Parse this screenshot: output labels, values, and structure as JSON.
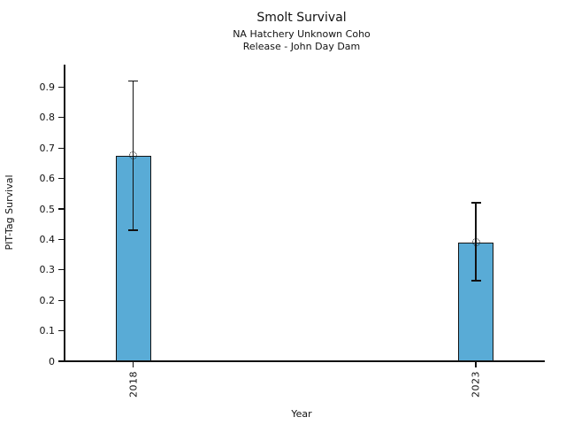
{
  "chart_data": {
    "type": "bar",
    "title": "Smolt Survival",
    "subtitle_line1": "NA Hatchery Unknown Coho",
    "subtitle_line2": "Release - John Day Dam",
    "xlabel": "Year",
    "ylabel": "PIT-Tag Survival",
    "categories": [
      "2018",
      "2023"
    ],
    "values": [
      0.675,
      0.39
    ],
    "error_low": [
      0.43,
      0.265
    ],
    "error_high": [
      0.92,
      0.52
    ],
    "ylim": [
      0,
      0.975
    ],
    "yticks": [
      0,
      0.1,
      0.2,
      0.3,
      0.4,
      0.5,
      0.6,
      0.7,
      0.8,
      0.9
    ],
    "ytick_labels": [
      "0",
      "0.1",
      "0.2",
      "0.3",
      "0.4",
      "0.5",
      "0.6",
      "0.7",
      "0.8",
      "0.9"
    ],
    "grid": false,
    "legend_position": "none",
    "bar_color": "#59ABD6",
    "bar_edge_color": "#141414",
    "axis_color": "#111111",
    "marker": "open-circle"
  }
}
